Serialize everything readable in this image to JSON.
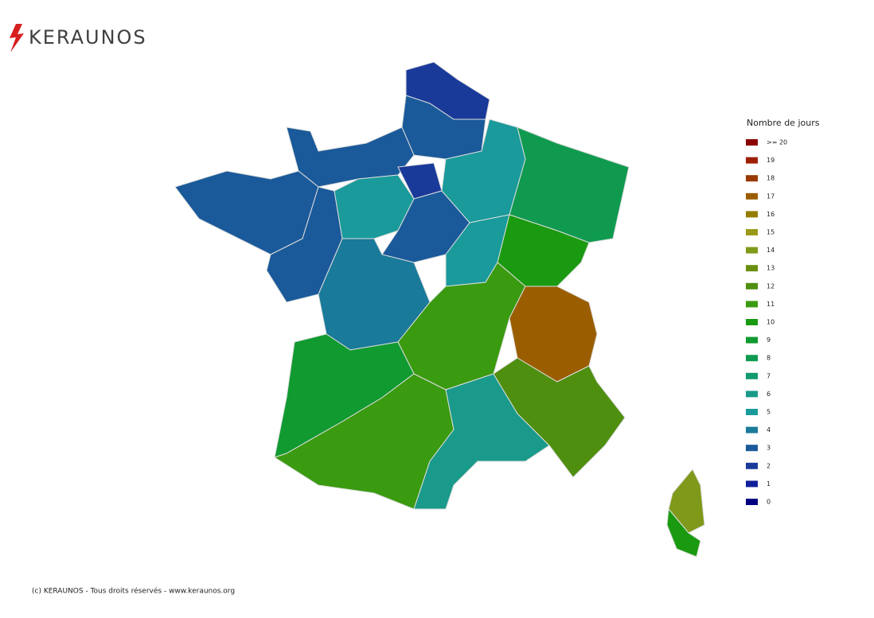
{
  "logo": {
    "text": "KERAUNOS"
  },
  "legend": {
    "title": "Nombre de jours",
    "items": [
      {
        "label": ">= 20",
        "color": "#8b0000"
      },
      {
        "label": "19",
        "color": "#9b1f00"
      },
      {
        "label": "18",
        "color": "#993a00"
      },
      {
        "label": "17",
        "color": "#9a5e00"
      },
      {
        "label": "16",
        "color": "#947c00"
      },
      {
        "label": "15",
        "color": "#9a9a1a"
      },
      {
        "label": "14",
        "color": "#7f9a1a"
      },
      {
        "label": "13",
        "color": "#6a8f10"
      },
      {
        "label": "12",
        "color": "#4f8f10"
      },
      {
        "label": "11",
        "color": "#3a9a10"
      },
      {
        "label": "10",
        "color": "#1a9a10"
      },
      {
        "label": "9",
        "color": "#109a30"
      },
      {
        "label": "8",
        "color": "#109a50"
      },
      {
        "label": "7",
        "color": "#109a70"
      },
      {
        "label": "6",
        "color": "#1a9a8a"
      },
      {
        "label": "5",
        "color": "#1a9a9a"
      },
      {
        "label": "4",
        "color": "#1a7a9a"
      },
      {
        "label": "3",
        "color": "#1a5a9a"
      },
      {
        "label": "2",
        "color": "#1a3a9a"
      },
      {
        "label": "1",
        "color": "#10209a"
      },
      {
        "label": "0",
        "color": "#000080"
      }
    ]
  },
  "map_values": [
    2,
    3,
    3,
    3,
    3,
    5,
    2,
    5,
    8,
    3,
    5,
    10,
    4,
    11,
    17,
    9,
    11,
    6,
    12,
    14,
    10
  ],
  "footer": "(c) KERAUNOS - Tous droits réservés - www.keraunos.org"
}
